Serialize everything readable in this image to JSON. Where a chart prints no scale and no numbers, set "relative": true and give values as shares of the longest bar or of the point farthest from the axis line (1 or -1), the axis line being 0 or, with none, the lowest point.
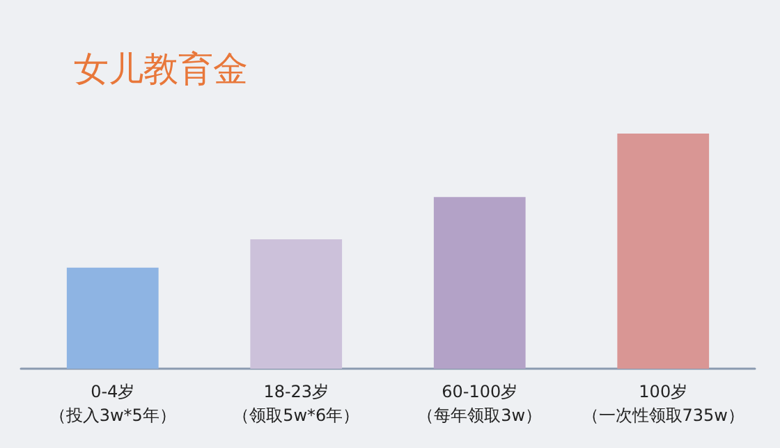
{
  "chart_data": {
    "type": "bar",
    "title": "女儿教育金",
    "relative": true,
    "categories": [
      "0-4岁（投入3w*5年）",
      "18-23岁（领取5w*6年）",
      "60-100岁（每年领取3w）",
      "100岁（一次性领取735w）"
    ],
    "values": [
      0.43,
      0.55,
      0.73,
      1
    ],
    "colors": [
      "#8eb4e3",
      "#ccc1da",
      "#b3a2c7",
      "#d99694"
    ]
  }
}
